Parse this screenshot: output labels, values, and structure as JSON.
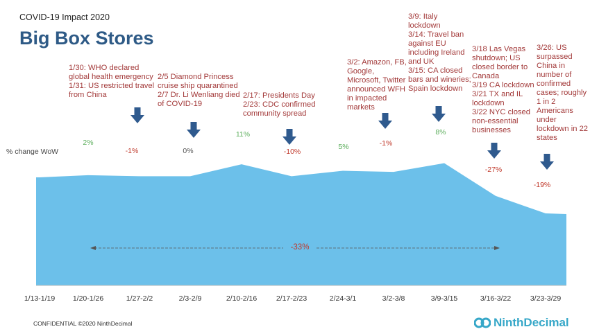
{
  "header": {
    "supertitle": "COVID-19 Impact 2020",
    "title": "Big Box Stores"
  },
  "footer": {
    "confidential": "CONFIDENTIAL ©2020 NinthDecimal",
    "logo_text": "NinthDecimal"
  },
  "colors": {
    "area": "#6cc0ea",
    "title": "#2e5a86",
    "positive": "#5cae5c",
    "negative": "#c0392b",
    "annotation": "#a33a3a",
    "arrow": "#2f5a8e"
  },
  "chart_data": {
    "type": "area",
    "title": "Big Box Stores",
    "ylabel": "% change WoW",
    "categories": [
      "1/13-1/19",
      "1/20-1/26",
      "1/27-2/2",
      "2/3-2/9",
      "2/10-2/16",
      "2/17-2/23",
      "2/24-3/1",
      "3/2-3/8",
      "3/9-3/15",
      "3/16-3/22",
      "3/23-3/29"
    ],
    "index_values": [
      100,
      102,
      101,
      101,
      112,
      101,
      106,
      105,
      113,
      83,
      67
    ],
    "changes": [
      "",
      "2%",
      "-1%",
      "0%",
      "11%",
      "-10%",
      "5%",
      "-1%",
      "8%",
      "-27%",
      "-19%"
    ],
    "total_change": "-33%",
    "annotations": [
      {
        "text": "1/30: WHO declared\nglobal health emergency\n1/31: US restricted travel\nfrom China"
      },
      {
        "text": "2/5 Diamond Princess\ncruise ship quarantined\n2/7 Dr. Li Wenliang died\nof COVID-19"
      },
      {
        "text": "2/17: Presidents Day\n2/23: CDC confirmed\ncommunity spread"
      },
      {
        "text": "3/2: Amazon, FB,\nGoogle,\nMicrosoft, Twitter\nannounced WFH\nin impacted\nmarkets"
      },
      {
        "text": "3/9: Italy\nlockdown\n3/14: Travel ban\nagainst EU\nincluding Ireland\nand UK\n3/15: CA closed\nbars and wineries;\nSpain lockdown"
      },
      {
        "text": "3/18 Las Vegas\nshutdown; US\nclosed border to\nCanada\n3/19 CA lockdown\n3/21 TX and IL\nlockdown\n3/22 NYC closed\nnon-essential\nbusinesses"
      },
      {
        "text": "3/26: US\nsurpassed\nChina in\nnumber of\nconfirmed\ncases; roughly\n1 in 2\nAmericans\nunder\nlockdown in 22\nstates"
      }
    ]
  }
}
